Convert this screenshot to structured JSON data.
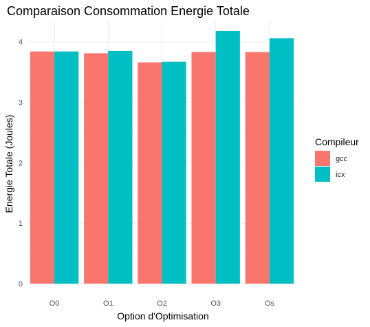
{
  "chart_data": {
    "type": "bar",
    "title": "Comparaison Consommation Energie Totale",
    "xlabel": "Option d'Optimisation",
    "ylabel": "Energie Totale (Joules)",
    "categories": [
      "O0",
      "O1",
      "O2",
      "O3",
      "Os"
    ],
    "series": [
      {
        "name": "gcc",
        "color": "#F8766D",
        "values": [
          3.84,
          3.81,
          3.66,
          3.83,
          3.83
        ]
      },
      {
        "name": "icx",
        "color": "#00BFC4",
        "values": [
          3.84,
          3.85,
          3.67,
          4.18,
          4.06
        ]
      }
    ],
    "yticks": [
      0,
      1,
      2,
      3,
      4
    ],
    "ylim": [
      0,
      4.35
    ],
    "grid": true,
    "legend": {
      "title": "Compileur",
      "position": "right"
    }
  }
}
